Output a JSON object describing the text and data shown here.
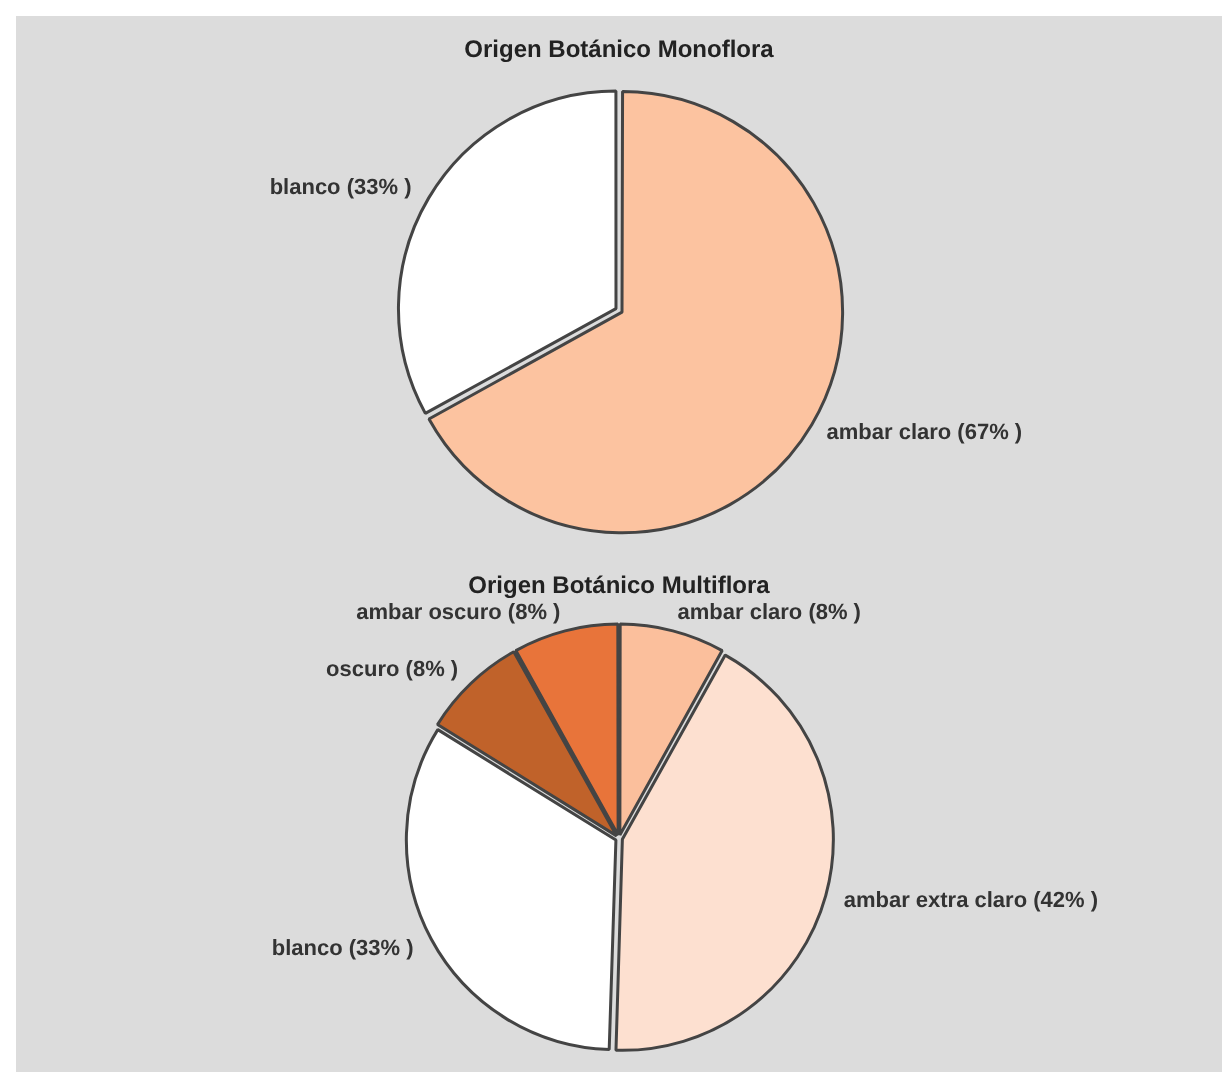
{
  "chart_data": [
    {
      "type": "pie",
      "title": "Origen Botánico Monoflora",
      "categories": [
        "ambar claro",
        "blanco"
      ],
      "values": [
        67,
        33
      ],
      "value_labels": [
        "(67% )",
        "(33% )"
      ],
      "colors": [
        "#fcc3a0",
        "#ffffff"
      ],
      "legend": false
    },
    {
      "type": "pie",
      "title": "Origen Botánico Multiflora",
      "categories": [
        "ambar claro",
        "ambar extra claro",
        "blanco",
        "oscuro",
        "ambar oscuro"
      ],
      "values": [
        8,
        42,
        33,
        8,
        8
      ],
      "value_labels": [
        "(8% )",
        "(42% )",
        "(33% )",
        "(8% )",
        "(8% )"
      ],
      "colors": [
        "#fbbf9c",
        "#fde0d0",
        "#ffffff",
        "#c0622a",
        "#e8743a"
      ],
      "legend": false
    }
  ]
}
